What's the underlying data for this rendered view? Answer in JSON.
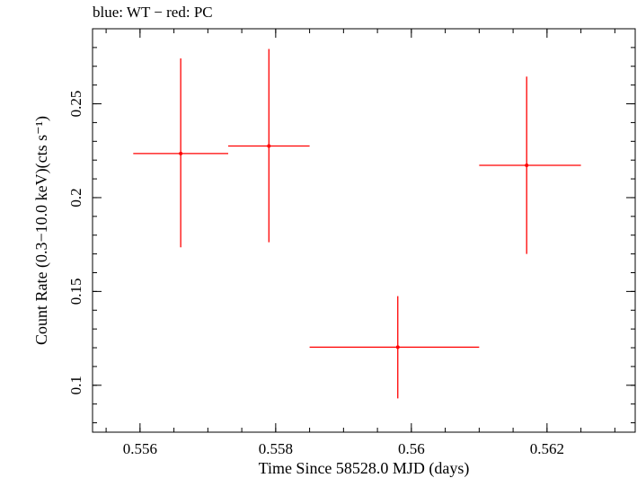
{
  "chart_data": {
    "type": "scatter",
    "title": "blue: WT − red: PC",
    "xlabel": "Time Since 58528.0 MJD (days)",
    "ylabel": "Count Rate (0.3−10.0 keV)(cts s⁻¹)",
    "xlim": [
      0.5553,
      0.5633
    ],
    "ylim": [
      0.075,
      0.29
    ],
    "xticks": [
      {
        "value": 0.556,
        "label": "0.556"
      },
      {
        "value": 0.558,
        "label": "0.558"
      },
      {
        "value": 0.56,
        "label": "0.56"
      },
      {
        "value": 0.562,
        "label": "0.562"
      }
    ],
    "yticks": [
      {
        "value": 0.1,
        "label": "0.1"
      },
      {
        "value": 0.15,
        "label": "0.15"
      },
      {
        "value": 0.2,
        "label": "0.2"
      },
      {
        "value": 0.25,
        "label": "0.25"
      }
    ],
    "series": [
      {
        "name": "PC",
        "color": "#ff0000",
        "points": [
          {
            "x": 0.5566,
            "y": 0.2235,
            "xlo": 0.5559,
            "xhi": 0.5573,
            "ylo": 0.1735,
            "yhi": 0.2742
          },
          {
            "x": 0.5579,
            "y": 0.2275,
            "xlo": 0.5573,
            "xhi": 0.5585,
            "ylo": 0.1762,
            "yhi": 0.2792
          },
          {
            "x": 0.5598,
            "y": 0.1203,
            "xlo": 0.5585,
            "xhi": 0.561,
            "ylo": 0.093,
            "yhi": 0.1475
          },
          {
            "x": 0.5617,
            "y": 0.2172,
            "xlo": 0.561,
            "xhi": 0.5625,
            "ylo": 0.17,
            "yhi": 0.2645
          }
        ]
      }
    ]
  }
}
